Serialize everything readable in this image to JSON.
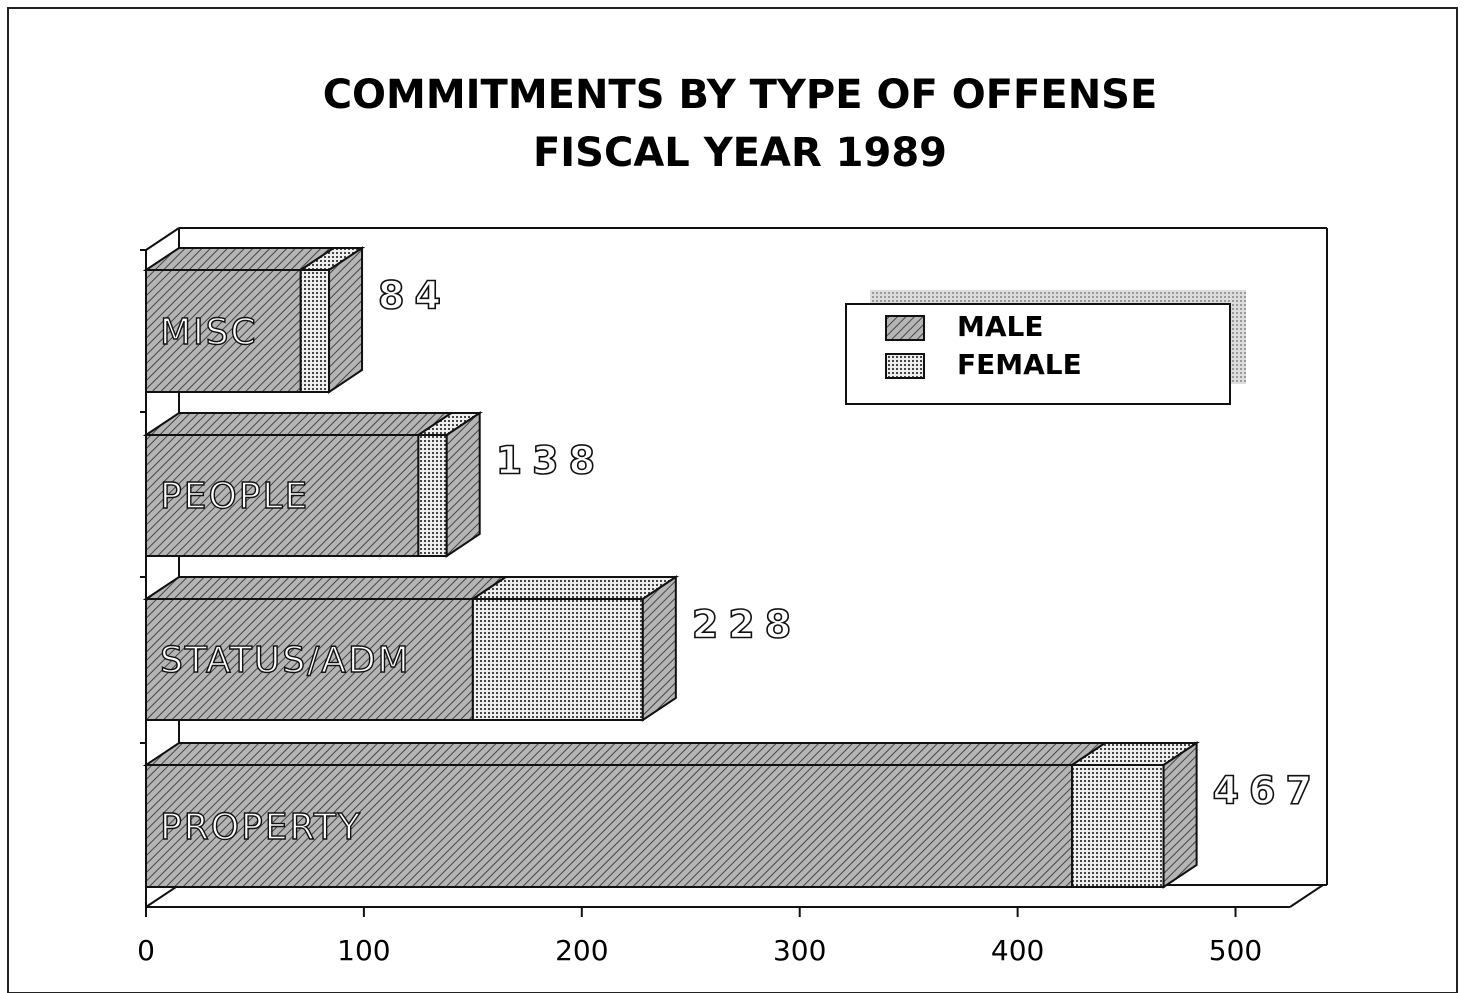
{
  "chart_data": {
    "type": "bar",
    "orientation": "horizontal",
    "stacked": true,
    "title": "COMMITMENTS BY TYPE OF OFFENSE",
    "subtitle": "FISCAL YEAR 1989",
    "categories": [
      "MISC",
      "PEOPLE",
      "STATUS/ADM",
      "PROPERTY"
    ],
    "series": [
      {
        "name": "MALE",
        "color": "#8c8c8c",
        "values": [
          71,
          125,
          150,
          425
        ]
      },
      {
        "name": "FEMALE",
        "color": "#d0d0d0",
        "values": [
          13,
          13,
          78,
          42
        ]
      }
    ],
    "totals": [
      84,
      138,
      228,
      467
    ],
    "xlim": [
      0,
      525
    ],
    "xticks": [
      0,
      100,
      200,
      300,
      400,
      500
    ],
    "legend": "upper right"
  }
}
